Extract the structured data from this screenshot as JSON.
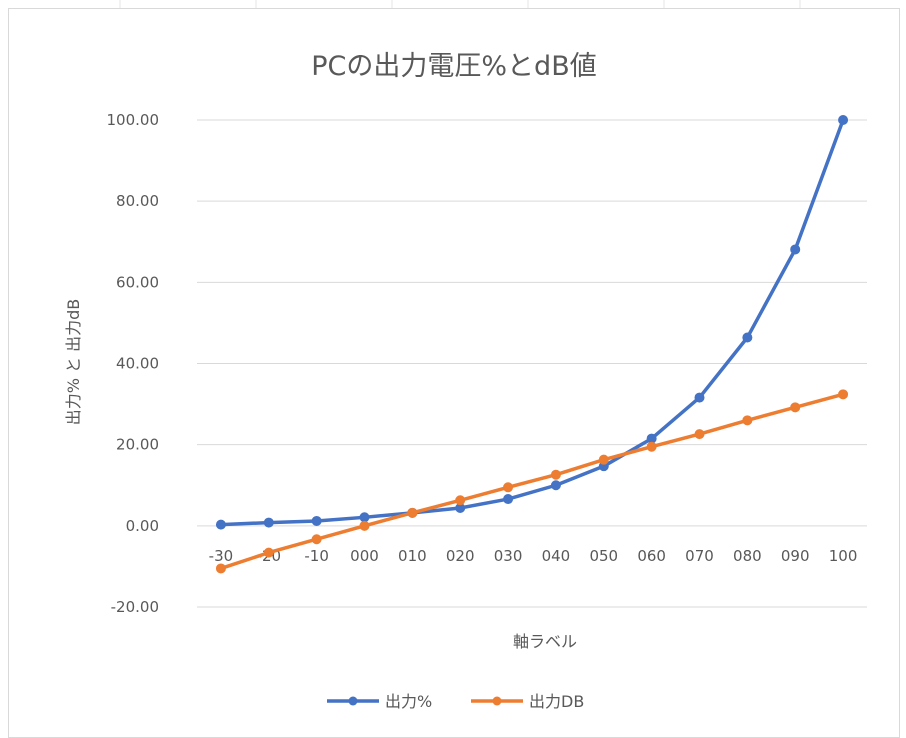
{
  "chart_data": {
    "type": "line",
    "title": "PCの出力電圧%とdB値",
    "xlabel": "軸ラベル",
    "ylabel": "出力% と 出力dB",
    "categories": [
      "-30",
      "-20",
      "-10",
      "000",
      "010",
      "020",
      "030",
      "040",
      "050",
      "060",
      "070",
      "080",
      "090",
      "100"
    ],
    "ylim": [
      -20,
      100
    ],
    "yticks": [
      "100.00",
      "80.00",
      "60.00",
      "40.00",
      "20.00",
      "0.00",
      "-20.00"
    ],
    "ytick_values": [
      100,
      80,
      60,
      40,
      20,
      0,
      -20
    ],
    "grid": true,
    "legend": "bottom",
    "series": [
      {
        "name": "出力%",
        "color": "#4472c4",
        "values": [
          0.3,
          0.8,
          1.2,
          2.1,
          3.2,
          4.4,
          6.6,
          10.0,
          14.7,
          21.5,
          31.6,
          46.4,
          68.1,
          100.0
        ]
      },
      {
        "name": "出力DB",
        "color": "#ed7d31",
        "values": [
          -10.5,
          -6.6,
          -3.3,
          0.0,
          3.2,
          6.3,
          9.5,
          12.6,
          16.3,
          19.5,
          22.6,
          26.0,
          29.2,
          32.4
        ]
      }
    ]
  }
}
